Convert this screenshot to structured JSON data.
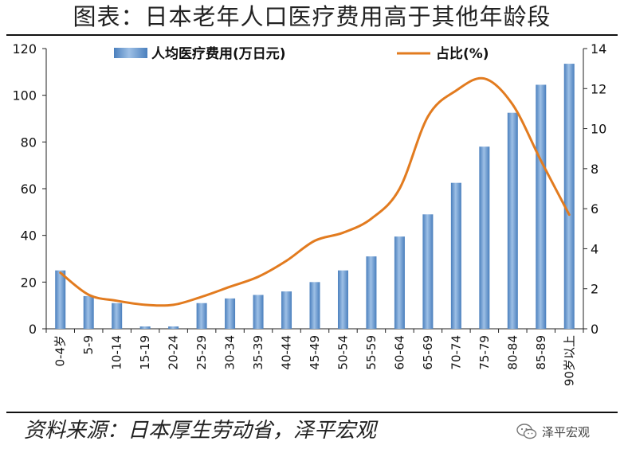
{
  "header": {
    "title": "图表：日本老年人口医疗费用高于其他年龄段"
  },
  "footer": {
    "source": "资料来源：日本厚生劳动省，泽平宏观",
    "brand": "泽平宏观"
  },
  "icons": {
    "brand": "wechat-icon"
  },
  "colors": {
    "bar": "#4a7fbd",
    "bar_light": "#9ec0e6",
    "line": "#e27b1f",
    "axis": "#222222"
  },
  "chart_data": {
    "type": "bar",
    "title": "图表：日本老年人口医疗费用高于其他年龄段",
    "categories": [
      "0-4岁",
      "5-9",
      "10-14",
      "15-19",
      "20-24",
      "25-29",
      "30-34",
      "35-39",
      "40-44",
      "45-49",
      "50-54",
      "55-59",
      "60-64",
      "65-69",
      "70-74",
      "75-79",
      "80-84",
      "85-89",
      "90岁以上"
    ],
    "series": [
      {
        "name": "人均医疗费用(万日元)",
        "type": "bar",
        "axis": "left",
        "values": [
          25,
          14,
          11,
          1,
          1,
          11,
          13,
          14.5,
          16,
          20,
          25,
          31,
          39.5,
          49,
          62.5,
          78,
          92.5,
          104.5,
          113.5
        ]
      },
      {
        "name": "占比(%)",
        "type": "line",
        "axis": "right",
        "values": [
          2.8,
          1.7,
          1.4,
          1.2,
          1.2,
          1.6,
          2.1,
          2.6,
          3.4,
          4.4,
          4.8,
          5.5,
          7.0,
          10.6,
          11.9,
          12.5,
          11.2,
          8.4,
          5.7
        ]
      }
    ],
    "y_left": {
      "min": 0,
      "max": 120,
      "ticks": [
        0,
        20,
        40,
        60,
        80,
        100,
        120
      ]
    },
    "y_right": {
      "min": 0,
      "max": 14,
      "ticks": [
        0,
        2,
        4,
        6,
        8,
        10,
        12,
        14
      ]
    },
    "legend": {
      "position": "top"
    },
    "grid": false
  }
}
